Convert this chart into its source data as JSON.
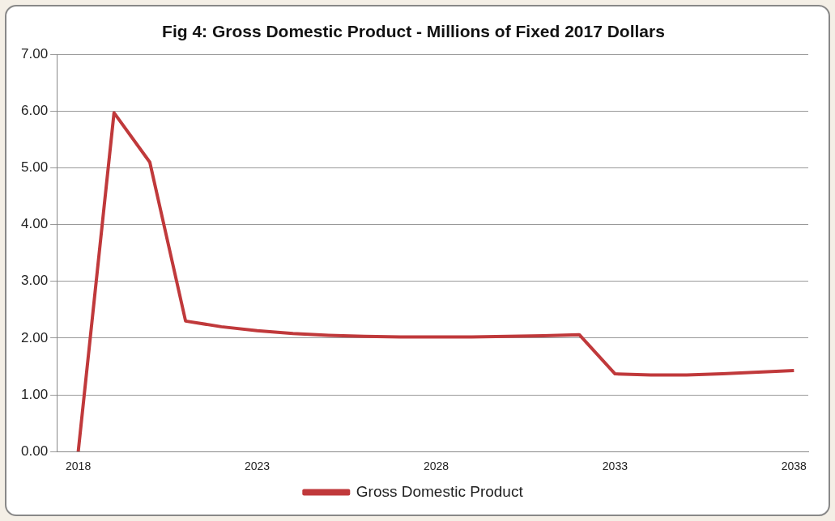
{
  "chart_data": {
    "type": "line",
    "title": "Fig 4: Gross Domestic Product - Millions of Fixed 2017 Dollars",
    "x": [
      2018,
      2019,
      2020,
      2021,
      2022,
      2023,
      2024,
      2025,
      2026,
      2027,
      2028,
      2029,
      2030,
      2031,
      2032,
      2033,
      2034,
      2035,
      2036,
      2037,
      2038
    ],
    "series": [
      {
        "name": "Gross Domestic Product",
        "color": "#c0393b",
        "values": [
          0,
          5.97,
          5.1,
          2.3,
          2.2,
          2.13,
          2.08,
          2.05,
          2.03,
          2.02,
          2.02,
          2.02,
          2.03,
          2.04,
          2.06,
          1.37,
          1.35,
          1.35,
          1.37,
          1.4,
          1.43
        ]
      }
    ],
    "xlim": [
      2017.4,
      2038.4
    ],
    "xticks": [
      2018,
      2023,
      2028,
      2033,
      2038
    ],
    "ylim": [
      0,
      7
    ],
    "yticks": [
      {
        "value": 0,
        "label": "0.00"
      },
      {
        "value": 1,
        "label": "1.00"
      },
      {
        "value": 2,
        "label": "2.00"
      },
      {
        "value": 3,
        "label": "3.00"
      },
      {
        "value": 4,
        "label": "4.00"
      },
      {
        "value": 5,
        "label": "5.00"
      },
      {
        "value": 6,
        "label": "6.00"
      },
      {
        "value": 7,
        "label": "7.00"
      }
    ],
    "grid": "y",
    "legend": "bottom",
    "marker": "none",
    "line_style": "solid"
  }
}
